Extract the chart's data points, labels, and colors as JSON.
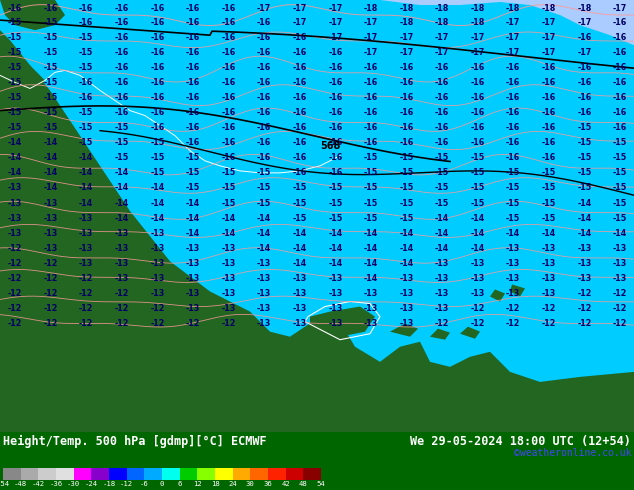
{
  "title_left": "Height/Temp. 500 hPa [gdmp][°C] ECMWF",
  "title_right": "We 29-05-2024 18:00 UTC (12+54)",
  "credit": "©weatheronline.co.uk",
  "fig_bg": "#006600",
  "map_bg": "#00ccff",
  "ocean_color": "#00ccff",
  "cold_pool_color": "#aaccff",
  "land_color": "#226622",
  "label_color": "#000066",
  "contour_black": "#000000",
  "contour_red": "#ff6666",
  "bottom_bg": "#004400",
  "colorbar_colors": [
    "#888888",
    "#aaaaaa",
    "#cccccc",
    "#e0e0e0",
    "#ff00ff",
    "#8800cc",
    "#0000ff",
    "#0066ff",
    "#00aaff",
    "#00ffee",
    "#00cc00",
    "#88ff00",
    "#ffff00",
    "#ffaa00",
    "#ff6600",
    "#ff2200",
    "#cc0000",
    "#880000"
  ],
  "colorbar_ticks": [
    "-54",
    "-48",
    "-42",
    "-36",
    "-30",
    "-24",
    "-18",
    "-12",
    "-6",
    "0",
    "6",
    "12",
    "18",
    "24",
    "30",
    "36",
    "42",
    "48",
    "54"
  ]
}
